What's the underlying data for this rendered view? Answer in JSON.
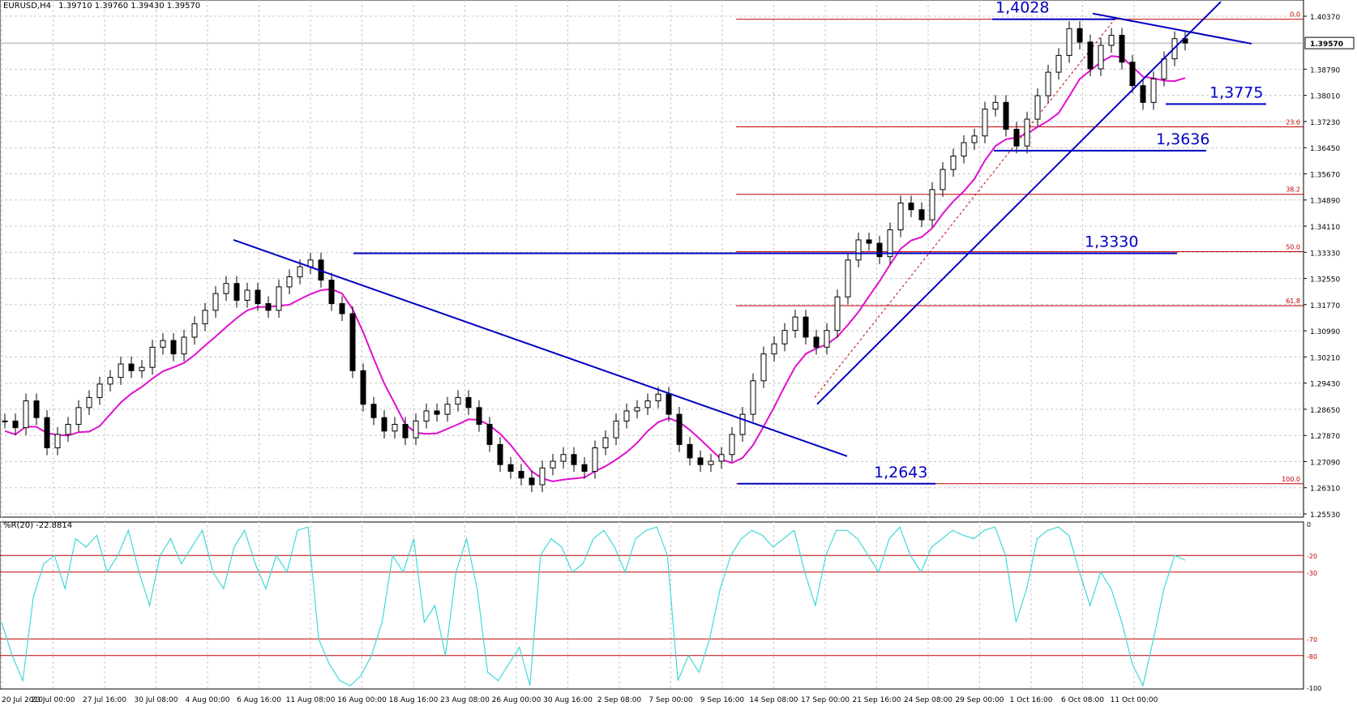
{
  "header": {
    "symbol": "EURUSD,H4",
    "ohlc": "1.39710 1.39760 1.39430 1.39570"
  },
  "indicator": {
    "label": "%R(20) -22.8814",
    "levels": [
      "-20",
      "-30",
      "-70",
      "-80"
    ],
    "axis_top": "0",
    "axis_bottom": "-100",
    "color": "#40d8d8"
  },
  "colors": {
    "candle": "#000000",
    "ma": "#e010d0",
    "trend": "#0000c0",
    "fib": "#c00000",
    "grid": "#c8c8c8"
  },
  "annotations": [
    {
      "text": "1,4028",
      "y": 1.4028
    },
    {
      "text": "1,3775",
      "y": 1.3775
    },
    {
      "text": "1,3636",
      "y": 1.3636
    },
    {
      "text": "1,3330",
      "y": 1.333
    },
    {
      "text": "1,2643",
      "y": 1.2643
    }
  ],
  "fibonacci": [
    {
      "label": "0.0",
      "y": 1.4028
    },
    {
      "label": "23.6",
      "y": 1.3707
    },
    {
      "label": "38.2",
      "y": 1.3506
    },
    {
      "label": "50.0",
      "y": 1.3335
    },
    {
      "label": "61.8",
      "y": 1.3174
    },
    {
      "label": "100.0",
      "y": 1.2643
    }
  ],
  "chart_data": [
    {
      "type": "line",
      "series": [
        {
          "values": [
            1.283,
            1.281,
            1.289,
            1.284,
            1.275,
            1.279,
            1.282,
            1.287,
            1.29,
            1.294,
            1.296,
            1.3,
            1.298,
            1.299,
            1.305,
            1.307,
            1.303,
            1.308,
            1.312,
            1.316,
            1.321,
            1.324,
            1.319,
            1.322,
            1.318,
            1.316,
            1.323,
            1.326,
            1.329,
            1.331,
            1.325,
            1.318,
            1.315,
            1.298,
            1.288,
            1.284,
            1.28,
            1.282,
            1.278,
            1.283,
            1.286,
            1.285,
            1.288,
            1.29,
            1.287,
            1.282,
            1.276,
            1.27,
            1.268,
            1.266,
            1.264,
            1.269,
            1.271,
            1.273,
            1.27,
            1.268,
            1.275,
            1.278,
            1.283,
            1.286,
            1.287,
            1.289,
            1.291,
            1.285,
            1.276,
            1.272,
            1.27,
            1.271,
            1.273,
            1.279,
            1.285,
            1.295,
            1.303,
            1.306,
            1.31,
            1.314,
            1.308,
            1.305,
            1.31,
            1.32,
            1.331,
            1.337,
            1.336,
            1.332,
            1.34,
            1.348,
            1.346,
            1.343,
            1.352,
            1.358,
            1.362,
            1.366,
            1.368,
            1.376,
            1.378,
            1.37,
            1.365,
            1.373,
            1.38,
            1.387,
            1.392,
            1.4,
            1.396,
            1.388,
            1.395,
            1.398,
            1.39,
            1.383,
            1.378,
            1.385,
            1.391,
            1.397,
            1.3957
          ]
        }
      ]
    },
    {
      "type": "line",
      "series": [
        {
          "values": [
            -60,
            -80,
            -95,
            -45,
            -25,
            -20,
            -40,
            -10,
            -15,
            -8,
            -30,
            -20,
            -5,
            -30,
            -50,
            -20,
            -10,
            -25,
            -15,
            -5,
            -30,
            -40,
            -15,
            -5,
            -25,
            -40,
            -20,
            -30,
            -5,
            -3,
            -70,
            -85,
            -95,
            -98,
            -92,
            -80,
            -60,
            -20,
            -30,
            -10,
            -60,
            -50,
            -80,
            -30,
            -10,
            -40,
            -90,
            -95,
            -85,
            -75,
            -98,
            -20,
            -10,
            -15,
            -30,
            -25,
            -10,
            -5,
            -15,
            -30,
            -10,
            -5,
            -3,
            -20,
            -95,
            -80,
            -90,
            -70,
            -40,
            -20,
            -10,
            -5,
            -8,
            -15,
            -10,
            -5,
            -30,
            -50,
            -20,
            -5,
            -5,
            -10,
            -20,
            -30,
            -10,
            -3,
            -20,
            -30,
            -15,
            -10,
            -5,
            -8,
            -10,
            -5,
            -3,
            -20,
            -60,
            -40,
            -10,
            -5,
            -3,
            -8,
            -30,
            -50,
            -30,
            -40,
            -60,
            -85,
            -98,
            -70,
            -40,
            -20,
            -22.88
          ]
        }
      ]
    }
  ],
  "x_axis": {
    "ticks": [
      "20 Jul 2010",
      "23 Jul 00:00",
      "27 Jul 16:00",
      "30 Jul 08:00",
      "4 Aug 00:00",
      "6 Aug 16:00",
      "11 Aug 08:00",
      "16 Aug 00:00",
      "18 Aug 16:00",
      "23 Aug 08:00",
      "26 Aug 00:00",
      "30 Aug 16:00",
      "2 Sep 08:00",
      "7 Sep 00:00",
      "9 Sep 16:00",
      "14 Sep 08:00",
      "17 Sep 00:00",
      "21 Sep 16:00",
      "24 Sep 08:00",
      "29 Sep 00:00",
      "1 Oct 16:00",
      "6 Oct 08:00",
      "11 Oct 00:00"
    ]
  },
  "y_axis": {
    "ticks": [
      "1.40370",
      "1.38790",
      "1.38010",
      "1.37230",
      "1.36450",
      "1.35670",
      "1.34890",
      "1.34110",
      "1.33330",
      "1.32550",
      "1.31770",
      "1.30990",
      "1.30210",
      "1.29430",
      "1.28650",
      "1.27870",
      "1.27090",
      "1.26310",
      "1.25530"
    ],
    "current": "1.39570",
    "ylim": [
      1.2553,
      1.4037
    ]
  }
}
